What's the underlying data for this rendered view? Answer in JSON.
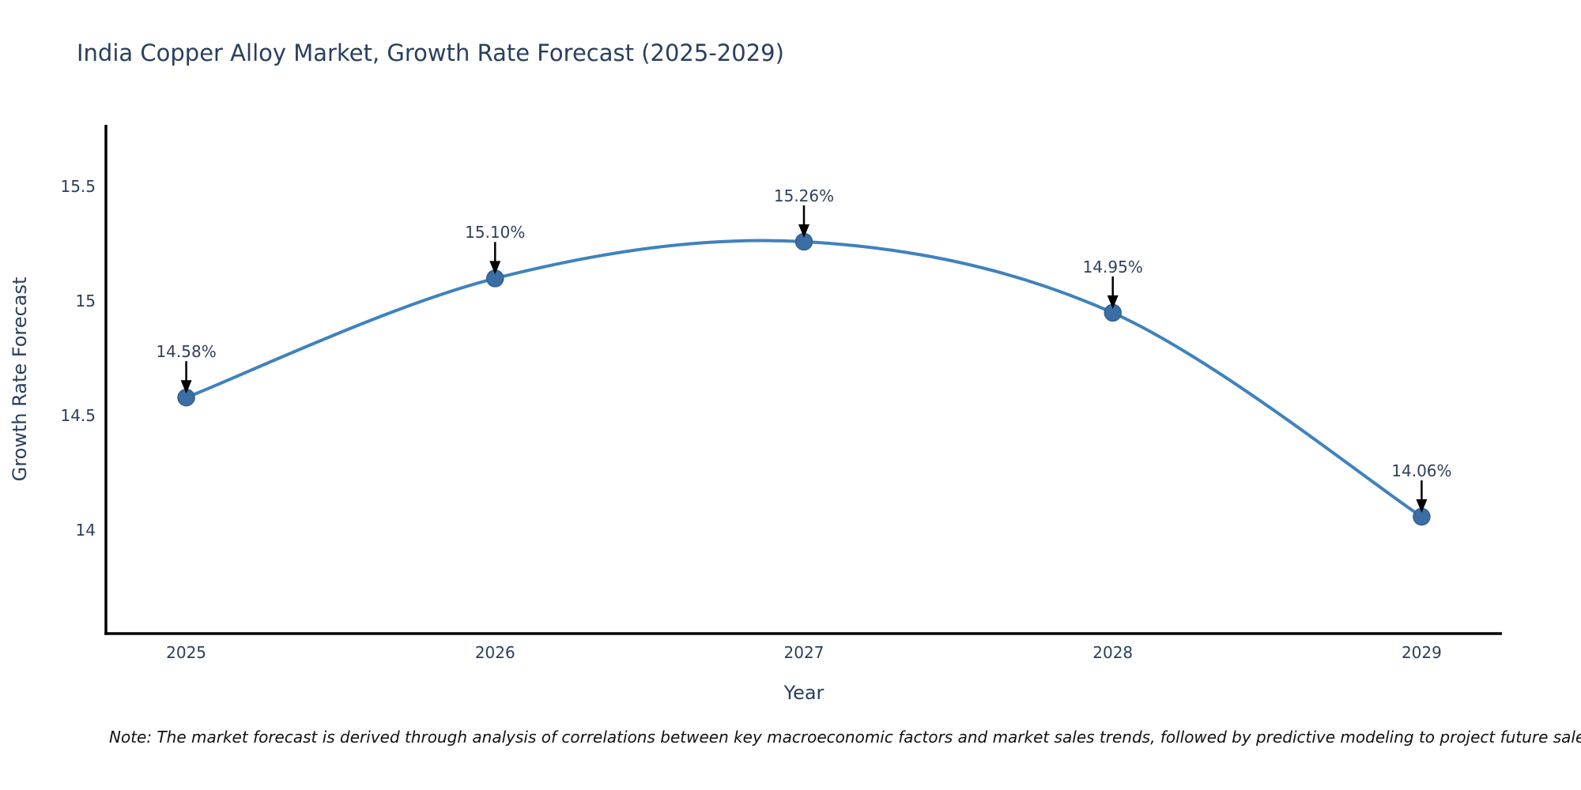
{
  "title": "India Copper Alloy Market, Growth Rate Forecast (2025-2029)",
  "chart_data": {
    "type": "line",
    "line_shape": "spline",
    "markers": true,
    "grid": false,
    "x": [
      2025,
      2026,
      2027,
      2028,
      2029
    ],
    "x_tick_labels": [
      "2025",
      "2026",
      "2027",
      "2028",
      "2029"
    ],
    "series": [
      {
        "name": "Growth Rate Forecast",
        "values": [
          14.58,
          15.1,
          15.26,
          14.95,
          14.06
        ]
      }
    ],
    "point_labels": [
      "14.58%",
      "15.10%",
      "15.26%",
      "14.95%",
      "14.06%"
    ],
    "title": "India Copper Alloy Market, Growth Rate Forecast (2025-2029)",
    "xlabel": "Year",
    "ylabel": "Growth Rate Forecast",
    "y_ticks": [
      14,
      14.5,
      15,
      15.5
    ],
    "y_tick_labels": [
      "14",
      "14.5",
      "15",
      "15.5"
    ],
    "xlim": [
      2024.74,
      2029.26
    ],
    "ylim": [
      13.55,
      15.77
    ],
    "legend": "none"
  },
  "note": "Note: The market forecast is derived through analysis of correlations between key macroeconomic factors and market sales trends, followed by predictive modeling to project future sales.",
  "colors": {
    "line": "#3f82bd",
    "marker_fill": "#3a6ea5",
    "marker_edge": "#33618f",
    "axis": "#000000",
    "text": "#2a3f5f",
    "annotation_arrow": "#000000",
    "note_text": "#111111",
    "background": "#ffffff"
  }
}
